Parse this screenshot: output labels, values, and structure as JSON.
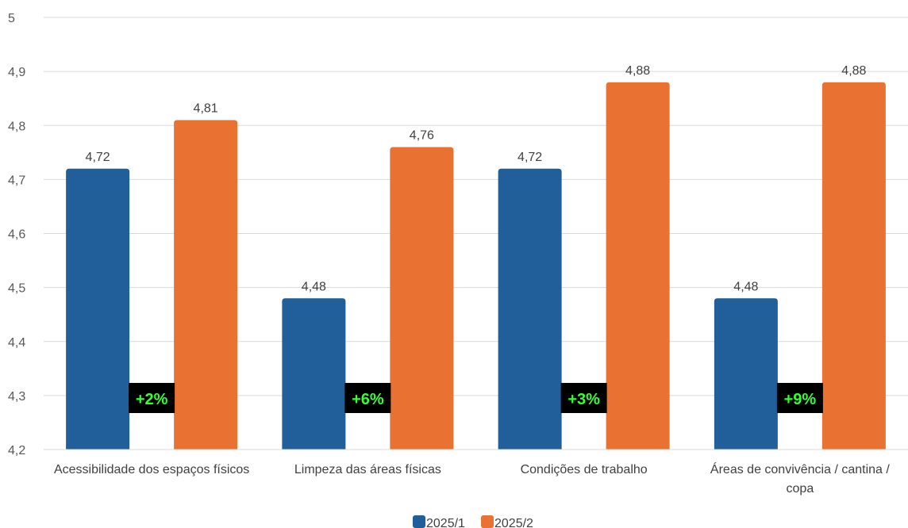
{
  "chart_data": {
    "type": "bar",
    "categories": [
      [
        "Acessibilidade dos espaços físicos"
      ],
      [
        "Limpeza das áreas físicas"
      ],
      [
        "Condições de trabalho"
      ],
      [
        "Áreas de convivência / cantina /",
        "copa"
      ]
    ],
    "series": [
      {
        "name": "2025/1",
        "color": "#215f9a",
        "values": [
          4.72,
          4.48,
          4.72,
          4.48
        ],
        "labels": [
          "4,72",
          "4,48",
          "4,72",
          "4,48"
        ]
      },
      {
        "name": "2025/2",
        "color": "#e97132",
        "values": [
          4.81,
          4.76,
          4.88,
          4.88
        ],
        "labels": [
          "4,81",
          "4,76",
          "4,88",
          "4,88"
        ]
      }
    ],
    "ylim": [
      4.2,
      5
    ],
    "yticks": [
      {
        "value": 4.2,
        "label": "4,2"
      },
      {
        "value": 4.3,
        "label": "4,3"
      },
      {
        "value": 4.4,
        "label": "4,4"
      },
      {
        "value": 4.5,
        "label": "4,5"
      },
      {
        "value": 4.6,
        "label": "4,6"
      },
      {
        "value": 4.7,
        "label": "4,7"
      },
      {
        "value": 4.8,
        "label": "4,8"
      },
      {
        "value": 4.9,
        "label": "4,9"
      },
      {
        "value": 5,
        "label": "5"
      }
    ],
    "annotations": [
      "+2%",
      "+6%",
      "+3%",
      "+9%"
    ],
    "annotation_colors": {
      "background": "#000000",
      "text": "#33ff33"
    },
    "grid": true,
    "legend": "bottom"
  }
}
